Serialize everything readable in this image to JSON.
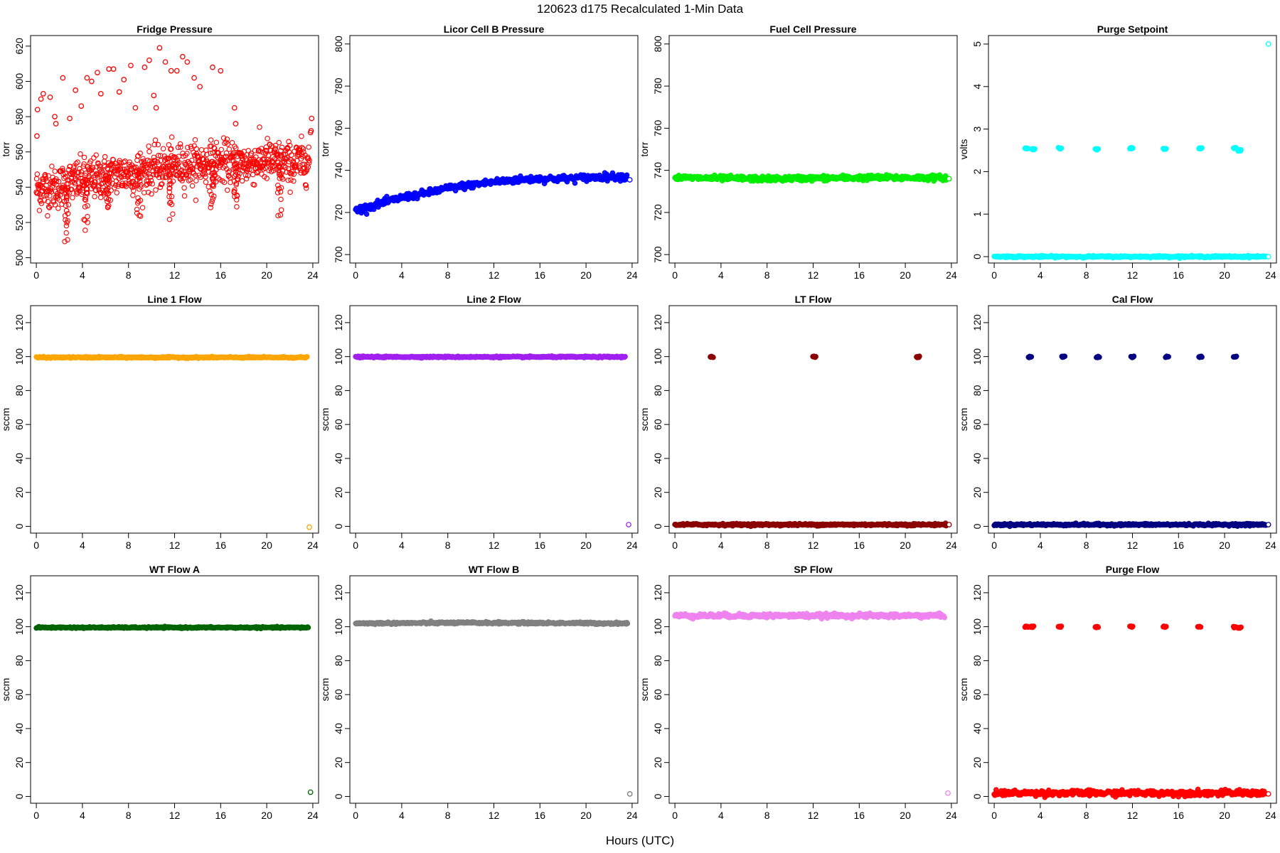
{
  "figure": {
    "title": "120623   d175   Recalculated 1-Min Data",
    "xlabel": "Hours (UTC)"
  },
  "chart_data": [
    {
      "type": "scatter",
      "title": "Fridge Pressure",
      "ylabel": "torr",
      "xlim": [
        -0.5,
        24.5
      ],
      "ylim": [
        497,
        626
      ],
      "xticks": [
        0,
        4,
        8,
        12,
        16,
        20,
        24
      ],
      "yticks": [
        500,
        520,
        540,
        560,
        580,
        600,
        620
      ],
      "color": "#ff0000",
      "marker": "open",
      "baseline": [
        [
          0,
          539
        ],
        [
          2,
          540
        ],
        [
          3,
          543
        ],
        [
          4,
          544
        ],
        [
          6,
          546
        ],
        [
          8,
          548
        ],
        [
          10,
          550
        ],
        [
          12,
          552
        ],
        [
          14,
          553
        ],
        [
          16,
          554
        ],
        [
          18,
          553
        ],
        [
          20,
          555
        ],
        [
          22,
          553
        ],
        [
          23.7,
          555
        ]
      ],
      "baseline_spread": 6,
      "dips": [
        [
          2.6,
          503
        ],
        [
          4.3,
          514
        ],
        [
          6.2,
          522
        ],
        [
          8.9,
          517
        ],
        [
          11.7,
          519
        ],
        [
          15.3,
          524
        ],
        [
          17.3,
          520
        ],
        [
          21.1,
          520
        ]
      ],
      "points": [
        [
          0.05,
          569
        ],
        [
          0.1,
          584
        ],
        [
          0.4,
          590
        ],
        [
          0.6,
          593
        ],
        [
          1.2,
          591
        ],
        [
          1.6,
          580
        ],
        [
          1.7,
          576
        ],
        [
          2.3,
          602
        ],
        [
          2.9,
          579
        ],
        [
          3.4,
          595
        ],
        [
          3.9,
          586
        ],
        [
          4.4,
          602
        ],
        [
          4.8,
          600
        ],
        [
          5.3,
          605
        ],
        [
          5.6,
          593
        ],
        [
          6.3,
          607
        ],
        [
          6.7,
          607
        ],
        [
          7.2,
          594
        ],
        [
          7.6,
          601
        ],
        [
          8.2,
          609
        ],
        [
          8.6,
          585
        ],
        [
          9.4,
          608
        ],
        [
          9.8,
          612
        ],
        [
          10.2,
          592
        ],
        [
          10.4,
          585
        ],
        [
          10.7,
          619
        ],
        [
          11.2,
          611
        ],
        [
          11.7,
          606
        ],
        [
          12.2,
          606
        ],
        [
          12.7,
          614
        ],
        [
          13.1,
          611
        ],
        [
          13.7,
          602
        ],
        [
          14.2,
          597
        ],
        [
          15.3,
          608
        ],
        [
          16.0,
          606
        ],
        [
          17.2,
          585
        ],
        [
          17.3,
          576
        ],
        [
          22.8,
          561
        ],
        [
          23.8,
          571
        ],
        [
          23.85,
          572
        ],
        [
          23.9,
          579
        ]
      ]
    },
    {
      "type": "scatter",
      "title": "Licor Cell B Pressure",
      "ylabel": "torr",
      "xlim": [
        -0.5,
        24.5
      ],
      "ylim": [
        696,
        804
      ],
      "xticks": [
        0,
        4,
        8,
        12,
        16,
        20,
        24
      ],
      "yticks": [
        700,
        720,
        740,
        760,
        780,
        800
      ],
      "color": "#0000ff",
      "marker": "filled",
      "baseline": [
        [
          0,
          721
        ],
        [
          2,
          724
        ],
        [
          4,
          727
        ],
        [
          6,
          729
        ],
        [
          8,
          731.5
        ],
        [
          10,
          733
        ],
        [
          12,
          734.5
        ],
        [
          14,
          735.5
        ],
        [
          16,
          736
        ],
        [
          18,
          736
        ],
        [
          20,
          736.5
        ],
        [
          22,
          737
        ],
        [
          23.6,
          737
        ]
      ],
      "baseline_spread": 0.8,
      "points": [
        [
          23.8,
          735.5
        ]
      ]
    },
    {
      "type": "scatter",
      "title": "Fuel Cell Pressure",
      "ylabel": "torr",
      "xlim": [
        -0.5,
        24.5
      ],
      "ylim": [
        696,
        804
      ],
      "xticks": [
        0,
        4,
        8,
        12,
        16,
        20,
        24
      ],
      "yticks": [
        700,
        720,
        740,
        760,
        780,
        800
      ],
      "color": "#00ee00",
      "marker": "filled",
      "baseline": [
        [
          0,
          736.5
        ],
        [
          8,
          736
        ],
        [
          16,
          736.5
        ],
        [
          23.6,
          736.5
        ]
      ],
      "baseline_spread": 0.6,
      "points": [
        [
          23.8,
          736
        ]
      ]
    },
    {
      "type": "scatter",
      "title": "Purge Setpoint",
      "ylabel": "volts",
      "xlim": [
        -0.5,
        24.5
      ],
      "ylim": [
        -0.15,
        5.2
      ],
      "xticks": [
        0,
        4,
        8,
        12,
        16,
        20,
        24
      ],
      "yticks": [
        0,
        1,
        2,
        3,
        4,
        5
      ],
      "color": "#00ffff",
      "marker": "filled",
      "baseline": [
        [
          0,
          0
        ],
        [
          23.6,
          0
        ]
      ],
      "baseline_spread": 0.01,
      "clusters": [
        [
          2.8,
          2.55
        ],
        [
          3.4,
          2.53
        ],
        [
          5.7,
          2.55
        ],
        [
          8.9,
          2.52
        ],
        [
          11.9,
          2.55
        ],
        [
          14.8,
          2.53
        ],
        [
          17.9,
          2.55
        ],
        [
          20.9,
          2.55
        ],
        [
          21.3,
          2.5
        ]
      ],
      "points": [
        [
          23.8,
          5.0
        ],
        [
          23.8,
          0
        ]
      ]
    },
    {
      "type": "scatter",
      "title": "Line 1 Flow",
      "ylabel": "sccm",
      "xlim": [
        -0.5,
        24.5
      ],
      "ylim": [
        -4,
        130
      ],
      "xticks": [
        0,
        4,
        8,
        12,
        16,
        20,
        24
      ],
      "yticks": [
        0,
        20,
        40,
        60,
        80,
        100,
        120
      ],
      "color": "#ffa500",
      "marker": "filled",
      "baseline": [
        [
          0,
          99.5
        ],
        [
          23.5,
          99.5
        ]
      ],
      "baseline_spread": 0.2,
      "points": [
        [
          23.7,
          -0.5
        ]
      ]
    },
    {
      "type": "scatter",
      "title": "Line 2 Flow",
      "ylabel": "sccm",
      "xlim": [
        -0.5,
        24.5
      ],
      "ylim": [
        -4,
        130
      ],
      "xticks": [
        0,
        4,
        8,
        12,
        16,
        20,
        24
      ],
      "yticks": [
        0,
        20,
        40,
        60,
        80,
        100,
        120
      ],
      "color": "#a020f0",
      "marker": "filled",
      "baseline": [
        [
          0,
          99.8
        ],
        [
          23.4,
          99.8
        ]
      ],
      "baseline_spread": 0.2,
      "points": [
        [
          23.7,
          1
        ]
      ]
    },
    {
      "type": "scatter",
      "title": "LT Flow",
      "ylabel": "sccm",
      "xlim": [
        -0.5,
        24.5
      ],
      "ylim": [
        -4,
        130
      ],
      "xticks": [
        0,
        4,
        8,
        12,
        16,
        20,
        24
      ],
      "yticks": [
        0,
        20,
        40,
        60,
        80,
        100,
        120
      ],
      "color": "#8b0000",
      "marker": "filled",
      "baseline": [
        [
          0,
          1
        ],
        [
          23.6,
          1
        ]
      ],
      "baseline_spread": 0.3,
      "clusters": [
        [
          3.2,
          99.8
        ],
        [
          12.1,
          99.8
        ],
        [
          21.1,
          99.8
        ]
      ],
      "points": [
        [
          23.8,
          1
        ]
      ]
    },
    {
      "type": "scatter",
      "title": "Cal Flow",
      "ylabel": "sccm",
      "xlim": [
        -0.5,
        24.5
      ],
      "ylim": [
        -4,
        130
      ],
      "xticks": [
        0,
        4,
        8,
        12,
        16,
        20,
        24
      ],
      "yticks": [
        0,
        20,
        40,
        60,
        80,
        100,
        120
      ],
      "color": "#000080",
      "marker": "filled",
      "baseline": [
        [
          0,
          1
        ],
        [
          23.6,
          1
        ]
      ],
      "baseline_spread": 0.3,
      "clusters": [
        [
          3.1,
          99.8
        ],
        [
          6.0,
          99.8
        ],
        [
          9.0,
          99.8
        ],
        [
          12.0,
          99.8
        ],
        [
          15.0,
          99.8
        ],
        [
          17.9,
          99.8
        ],
        [
          20.9,
          99.8
        ]
      ],
      "points": [
        [
          23.8,
          1
        ]
      ]
    },
    {
      "type": "scatter",
      "title": "WT Flow A",
      "ylabel": "sccm",
      "xlim": [
        -0.5,
        24.5
      ],
      "ylim": [
        -4,
        130
      ],
      "xticks": [
        0,
        4,
        8,
        12,
        16,
        20,
        24
      ],
      "yticks": [
        0,
        20,
        40,
        60,
        80,
        100,
        120
      ],
      "color": "#006400",
      "marker": "filled",
      "baseline": [
        [
          0,
          99.5
        ],
        [
          23.6,
          99.5
        ]
      ],
      "baseline_spread": 0.2,
      "points": [
        [
          23.8,
          2.5
        ]
      ]
    },
    {
      "type": "scatter",
      "title": "WT Flow B",
      "ylabel": "sccm",
      "xlim": [
        -0.5,
        24.5
      ],
      "ylim": [
        -4,
        130
      ],
      "xticks": [
        0,
        4,
        8,
        12,
        16,
        20,
        24
      ],
      "yticks": [
        0,
        20,
        40,
        60,
        80,
        100,
        120
      ],
      "color": "#808080",
      "marker": "filled",
      "baseline": [
        [
          0,
          102
        ],
        [
          10,
          102.3
        ],
        [
          23.6,
          102
        ]
      ],
      "baseline_spread": 0.3,
      "points": [
        [
          23.8,
          1.5
        ]
      ]
    },
    {
      "type": "scatter",
      "title": "SP Flow",
      "ylabel": "sccm",
      "xlim": [
        -0.5,
        24.5
      ],
      "ylim": [
        -4,
        130
      ],
      "xticks": [
        0,
        4,
        8,
        12,
        16,
        20,
        24
      ],
      "yticks": [
        0,
        20,
        40,
        60,
        80,
        100,
        120
      ],
      "color": "#ee82ee",
      "marker": "filled",
      "baseline": [
        [
          0,
          106.5
        ],
        [
          23.4,
          106.5
        ]
      ],
      "baseline_spread": 0.6,
      "points": [
        [
          23.7,
          2
        ]
      ]
    },
    {
      "type": "scatter",
      "title": "Purge Flow",
      "ylabel": "sccm",
      "xlim": [
        -0.5,
        24.5
      ],
      "ylim": [
        -4,
        130
      ],
      "xticks": [
        0,
        4,
        8,
        12,
        16,
        20,
        24
      ],
      "yticks": [
        0,
        20,
        40,
        60,
        80,
        100,
        120
      ],
      "color": "#ff0000",
      "marker": "filled",
      "baseline": [
        [
          0,
          2
        ],
        [
          23.6,
          2
        ]
      ],
      "baseline_spread": 0.8,
      "clusters": [
        [
          2.8,
          100
        ],
        [
          3.3,
          100
        ],
        [
          5.7,
          100
        ],
        [
          8.9,
          99.8
        ],
        [
          11.9,
          100
        ],
        [
          14.8,
          100
        ],
        [
          17.8,
          100
        ],
        [
          20.9,
          99.8
        ],
        [
          21.3,
          99.6
        ]
      ],
      "points": [
        [
          23.8,
          1.5
        ]
      ]
    }
  ]
}
